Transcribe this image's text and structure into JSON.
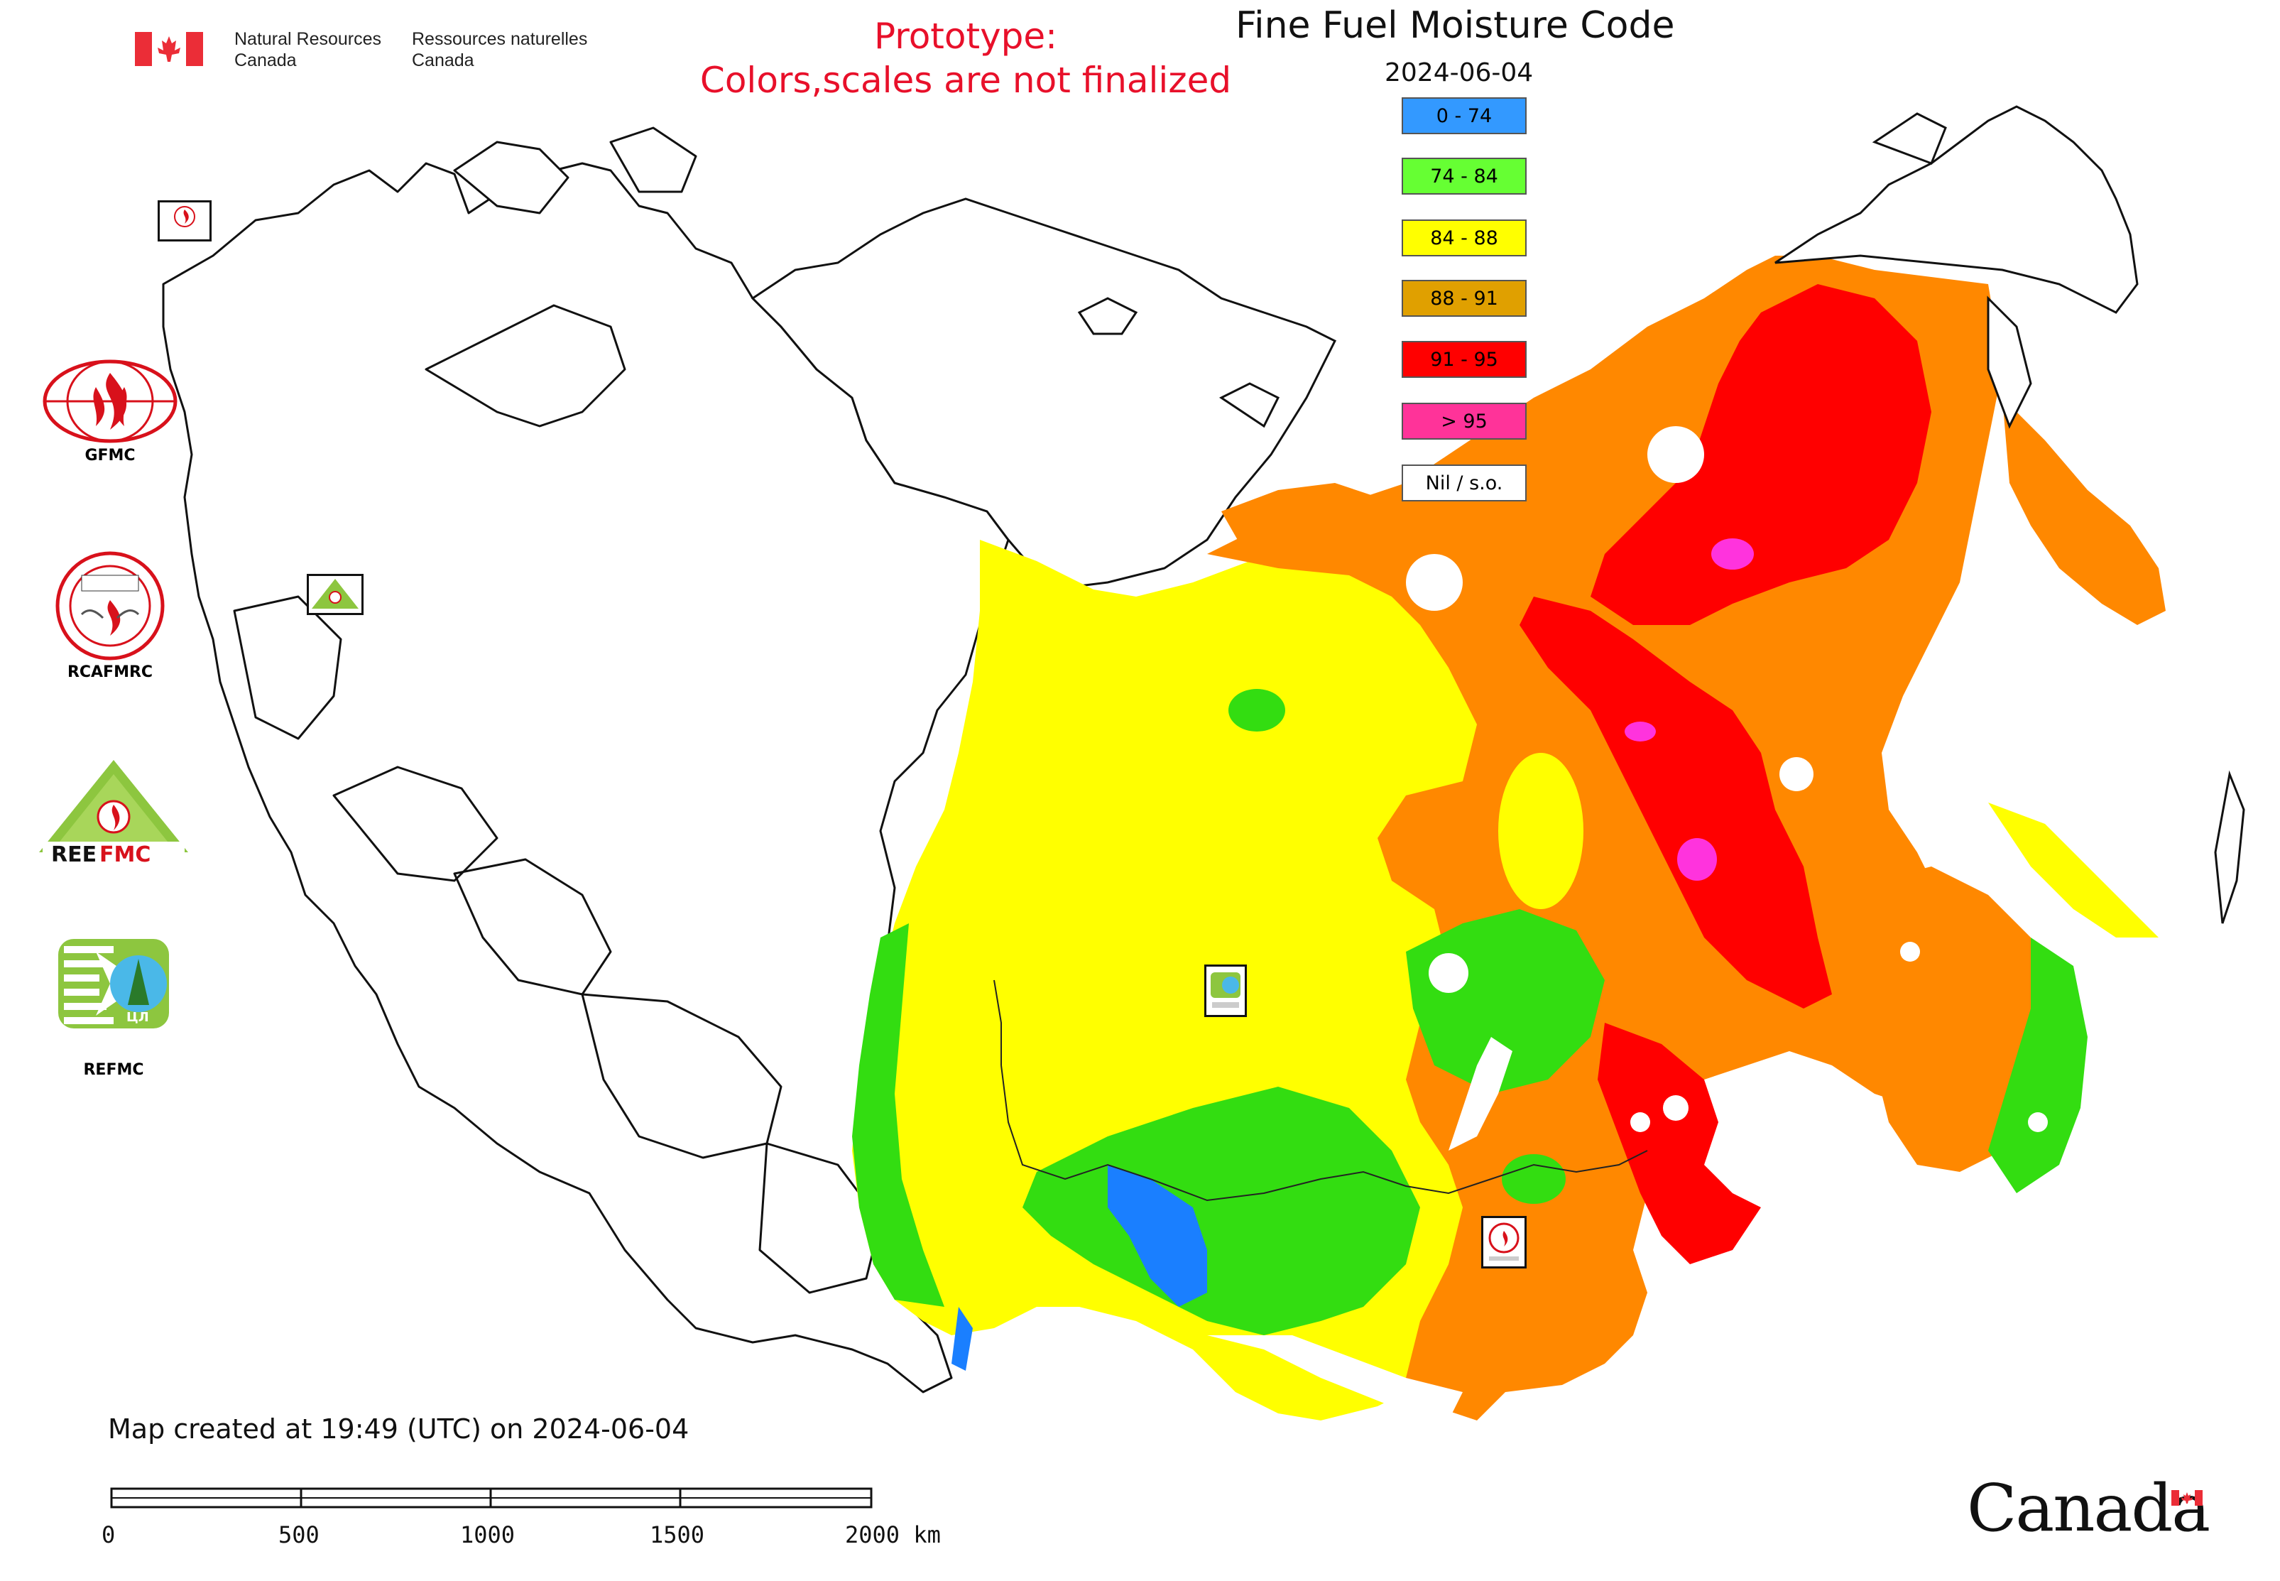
{
  "header": {
    "org_en_line1": "Natural Resources",
    "org_en_line2": "Canada",
    "org_fr_line1": "Ressources naturelles",
    "org_fr_line2": "Canada",
    "prototype_line1": "Prototype:",
    "prototype_line2": "Colors,scales are not finalized",
    "title": "Fine Fuel Moisture Code",
    "date": "2024-06-04"
  },
  "legend": {
    "items": [
      {
        "label": "0 - 74",
        "color": "#3399ff"
      },
      {
        "label": "74 - 84",
        "color": "#66ff33"
      },
      {
        "label": "84 - 88",
        "color": "#ffff00"
      },
      {
        "label": "88 - 91",
        "color": "#e0a000"
      },
      {
        "label": "91 - 95",
        "color": "#ff0000"
      },
      {
        "label": "> 95",
        "color": "#ff3399"
      },
      {
        "label": "Nil / s.o.",
        "color": "#ffffff"
      }
    ]
  },
  "logos": {
    "gfmc": "GFMC",
    "rcafmrc": "RCAFMRC",
    "reefmc": "REEFMC",
    "refmc": "REFMC",
    "refmc_emblem_text": "ЦЛ",
    "map_marker_gfmc": "GFMC",
    "map_marker_refmc": "REFMC",
    "map_marker_rcafmrc": "RCAFMRC"
  },
  "footer": {
    "created_text": "Map created at 19:49 (UTC) on 2024-06-04",
    "scale_ticks": [
      "0",
      "500",
      "1000",
      "1500",
      "2000 km"
    ],
    "wordmark": "Canada"
  },
  "colors": {
    "fire_red": "#e8102a",
    "canada_red": "#eb2d37"
  }
}
